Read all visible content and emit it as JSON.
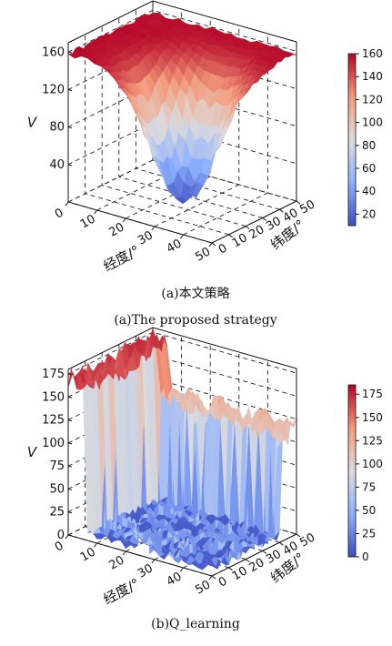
{
  "chart_data": [
    {
      "type": "surface3d",
      "panel": "a",
      "zlabel": "V",
      "xlabel": "经度/°",
      "ylabel": "纬度/°",
      "xticks": [
        0,
        10,
        20,
        30,
        40,
        50
      ],
      "yticks": [
        0,
        10,
        20,
        30,
        40,
        50
      ],
      "zticks": [
        40,
        80,
        120,
        160
      ],
      "zlim": [
        0,
        170
      ],
      "colorbar": {
        "ticks": [
          20,
          40,
          60,
          80,
          100,
          120,
          140,
          160
        ],
        "range": [
          10,
          160
        ],
        "colormap": "coolwarm"
      },
      "caption_cn": "(a)本文策略",
      "caption_en": "(a)The proposed strategy",
      "description_values": {
        "plateau_value": 155,
        "valley_min": 10
      }
    },
    {
      "type": "surface3d",
      "panel": "b",
      "zlabel": "V",
      "xlabel": "经度/°",
      "ylabel": "纬度/°",
      "xticks": [
        0,
        10,
        20,
        30,
        40,
        50
      ],
      "yticks": [
        0,
        10,
        20,
        30,
        40,
        50
      ],
      "zticks": [
        0,
        25,
        50,
        75,
        100,
        125,
        150,
        175
      ],
      "zlim": [
        0,
        180
      ],
      "colorbar": {
        "ticks": [
          0,
          25,
          50,
          75,
          100,
          125,
          150,
          175
        ],
        "range": [
          0,
          185
        ],
        "colormap": "coolwarm"
      },
      "caption_cn": "(b)Q_learning",
      "caption_en": "",
      "description_values": {
        "ridge_value": 120,
        "floor_value": 5
      }
    }
  ]
}
